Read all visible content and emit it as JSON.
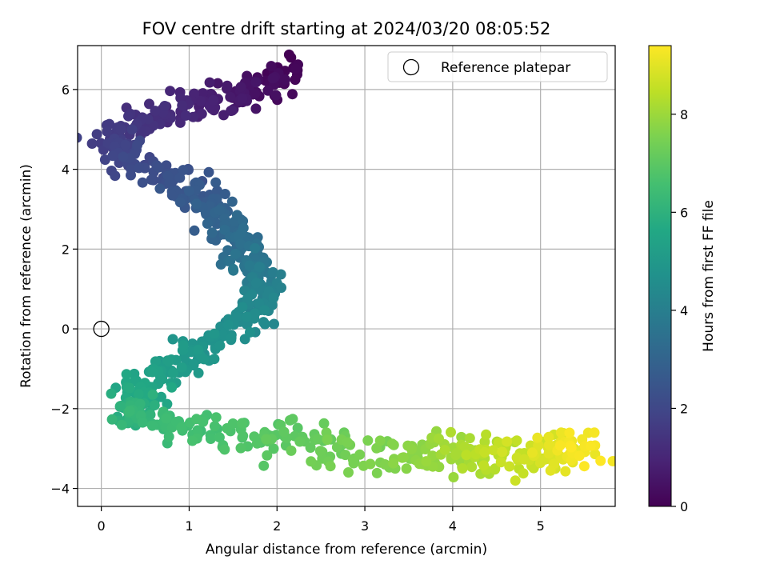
{
  "chart_data": {
    "type": "scatter",
    "title": "FOV centre drift starting at 2024/03/20 08:05:52",
    "xlabel": "Angular distance from reference (arcmin)",
    "ylabel": "Rotation from reference (arcmin)",
    "xlim": [
      -0.27,
      5.85
    ],
    "ylim": [
      -4.45,
      7.1
    ],
    "xticks": [
      0,
      1,
      2,
      3,
      4,
      5
    ],
    "yticks": [
      -4,
      -2,
      0,
      2,
      4,
      6
    ],
    "xtick_labels": [
      "0",
      "1",
      "2",
      "3",
      "4",
      "5"
    ],
    "ytick_labels": [
      "−4",
      "−2",
      "0",
      "2",
      "4",
      "6"
    ],
    "grid": true,
    "legend": {
      "position": "top-right",
      "entries": [
        "Reference platepar"
      ]
    },
    "reference_point": {
      "x": 0,
      "y": 0
    },
    "colorbar": {
      "label": "Hours from first FF file",
      "colormap": "viridis",
      "range": [
        0,
        9.4
      ],
      "ticks": [
        0,
        2,
        4,
        6,
        8
      ],
      "tick_labels": [
        "0",
        "2",
        "4",
        "6",
        "8"
      ]
    },
    "path": [
      {
        "t": 0.0,
        "x": 2.2,
        "y": 6.6
      },
      {
        "t": 0.3,
        "x": 1.95,
        "y": 6.1
      },
      {
        "t": 0.55,
        "x": 1.6,
        "y": 5.9
      },
      {
        "t": 0.8,
        "x": 1.25,
        "y": 5.6
      },
      {
        "t": 1.05,
        "x": 0.9,
        "y": 5.5
      },
      {
        "t": 1.3,
        "x": 0.55,
        "y": 5.3
      },
      {
        "t": 1.55,
        "x": 0.2,
        "y": 5.0
      },
      {
        "t": 1.8,
        "x": 0.15,
        "y": 4.6
      },
      {
        "t": 2.05,
        "x": 0.35,
        "y": 4.2
      },
      {
        "t": 2.3,
        "x": 0.75,
        "y": 3.8
      },
      {
        "t": 2.6,
        "x": 1.1,
        "y": 3.4
      },
      {
        "t": 2.9,
        "x": 1.3,
        "y": 2.9
      },
      {
        "t": 3.2,
        "x": 1.5,
        "y": 2.4
      },
      {
        "t": 3.5,
        "x": 1.65,
        "y": 1.9
      },
      {
        "t": 3.8,
        "x": 1.8,
        "y": 1.4
      },
      {
        "t": 4.1,
        "x": 1.85,
        "y": 0.9
      },
      {
        "t": 4.4,
        "x": 1.75,
        "y": 0.3
      },
      {
        "t": 4.7,
        "x": 1.4,
        "y": -0.2
      },
      {
        "t": 5.0,
        "x": 1.0,
        "y": -0.7
      },
      {
        "t": 5.3,
        "x": 0.65,
        "y": -1.2
      },
      {
        "t": 5.6,
        "x": 0.4,
        "y": -1.6
      },
      {
        "t": 5.9,
        "x": 0.3,
        "y": -2.0
      },
      {
        "t": 6.2,
        "x": 0.4,
        "y": -2.3
      },
      {
        "t": 6.5,
        "x": 1.0,
        "y": -2.5
      },
      {
        "t": 6.8,
        "x": 1.7,
        "y": -2.6
      },
      {
        "t": 7.1,
        "x": 2.3,
        "y": -2.8
      },
      {
        "t": 7.4,
        "x": 2.8,
        "y": -3.0
      },
      {
        "t": 7.7,
        "x": 3.4,
        "y": -3.2
      },
      {
        "t": 8.0,
        "x": 3.9,
        "y": -3.2
      },
      {
        "t": 8.3,
        "x": 4.3,
        "y": -3.1
      },
      {
        "t": 8.6,
        "x": 4.7,
        "y": -3.2
      },
      {
        "t": 8.9,
        "x": 5.1,
        "y": -3.2
      },
      {
        "t": 9.2,
        "x": 5.4,
        "y": -3.1
      },
      {
        "t": 9.4,
        "x": 5.5,
        "y": -3.0
      }
    ],
    "point_count": 900,
    "spread": 0.13
  }
}
